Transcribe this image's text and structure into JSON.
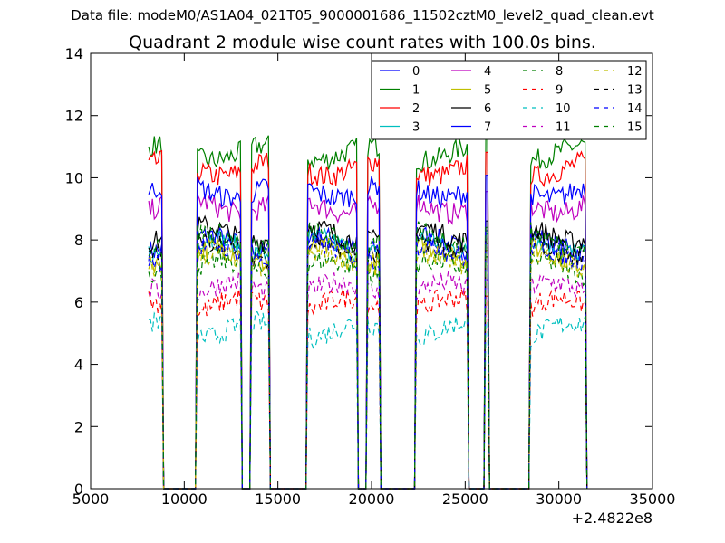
{
  "suptitle": "Data file: modeM0/AS1A04_021T05_9000001686_11502cztM0_level2_quad_clean.evt",
  "chart_data": {
    "type": "line",
    "title": "Quadrant 2 module wise count rates with 100.0s bins.",
    "xlabel": "",
    "ylabel": "",
    "x_offset_label": "+2.4822e8",
    "xlim": [
      5000,
      35000
    ],
    "ylim": [
      0,
      14
    ],
    "x_ticks": [
      "5000",
      "10000",
      "15000",
      "20000",
      "25000",
      "30000",
      "35000"
    ],
    "y_ticks": [
      "0",
      "2",
      "4",
      "6",
      "8",
      "10",
      "12",
      "14"
    ],
    "grid": false,
    "legend_position": "top-right",
    "legend_columns": 4,
    "segments": [
      [
        8100,
        8800
      ],
      [
        10700,
        13000
      ],
      [
        13600,
        14500
      ],
      [
        16600,
        19200
      ],
      [
        19800,
        20400
      ],
      [
        22400,
        25100
      ],
      [
        26100,
        26200
      ],
      [
        28500,
        31400
      ]
    ],
    "series": [
      {
        "name": "0",
        "color": "#0000ff",
        "dash": "solid",
        "level": 7.9
      },
      {
        "name": "1",
        "color": "#008000",
        "dash": "solid",
        "level": 10.8
      },
      {
        "name": "2",
        "color": "#ff0000",
        "dash": "solid",
        "level": 10.3
      },
      {
        "name": "3",
        "color": "#00bfbf",
        "dash": "solid",
        "level": 7.8
      },
      {
        "name": "4",
        "color": "#bf00bf",
        "dash": "solid",
        "level": 9.1
      },
      {
        "name": "5",
        "color": "#bfbf00",
        "dash": "solid",
        "level": 7.5
      },
      {
        "name": "6",
        "color": "#000000",
        "dash": "solid",
        "level": 8.2
      },
      {
        "name": "7",
        "color": "#0000ff",
        "dash": "solid",
        "level": 9.6
      },
      {
        "name": "8",
        "color": "#008000",
        "dash": "dashed",
        "level": 7.1
      },
      {
        "name": "9",
        "color": "#ff0000",
        "dash": "dashed",
        "level": 5.9
      },
      {
        "name": "10",
        "color": "#00bfbf",
        "dash": "dashed",
        "level": 5.1
      },
      {
        "name": "11",
        "color": "#bf00bf",
        "dash": "dashed",
        "level": 6.4
      },
      {
        "name": "12",
        "color": "#bfbf00",
        "dash": "dashed",
        "level": 7.3
      },
      {
        "name": "13",
        "color": "#000000",
        "dash": "dashed",
        "level": 7.7
      },
      {
        "name": "14",
        "color": "#0000ff",
        "dash": "dashed",
        "level": 7.6
      },
      {
        "name": "15",
        "color": "#008000",
        "dash": "dashed",
        "level": 8.0
      }
    ]
  }
}
